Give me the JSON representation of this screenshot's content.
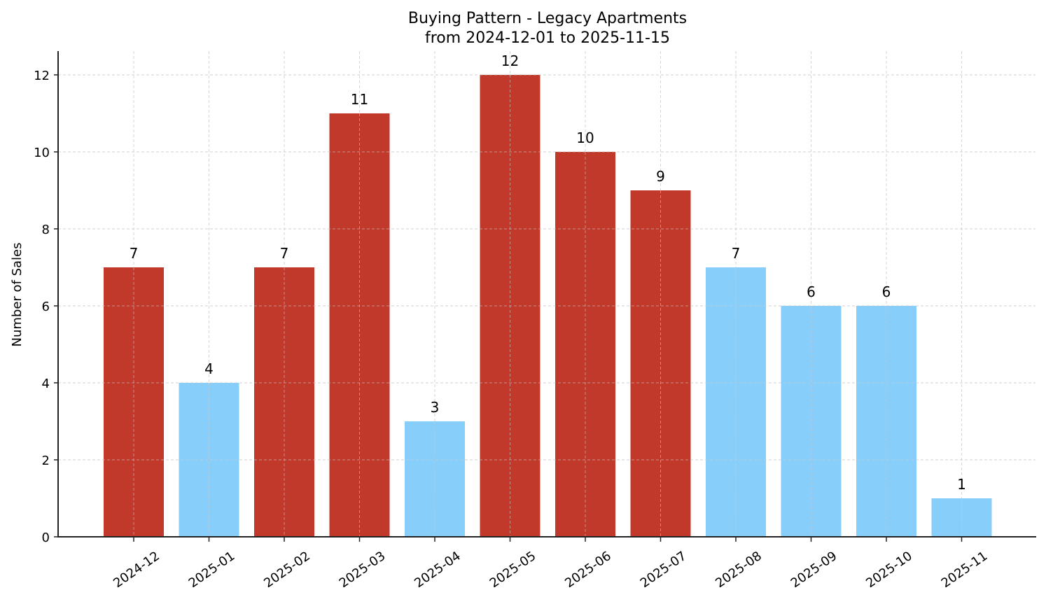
{
  "chart_data": {
    "type": "bar",
    "title": "Buying Pattern - Legacy Apartments",
    "subtitle": "from 2024-12-01 to 2025-11-15",
    "xlabel": "",
    "ylabel": "Number of Sales",
    "categories": [
      "2024-12",
      "2025-01",
      "2025-02",
      "2025-03",
      "2025-04",
      "2025-05",
      "2025-06",
      "2025-07",
      "2025-08",
      "2025-09",
      "2025-10",
      "2025-11"
    ],
    "values": [
      7,
      4,
      7,
      11,
      3,
      12,
      10,
      9,
      7,
      6,
      6,
      1
    ],
    "bar_colors": [
      "#c0392b",
      "#87cefa",
      "#c0392b",
      "#c0392b",
      "#87cefa",
      "#c0392b",
      "#c0392b",
      "#c0392b",
      "#87cefa",
      "#87cefa",
      "#87cefa",
      "#87cefa"
    ],
    "data_labels": [
      "7",
      "4",
      "7",
      "11",
      "3",
      "12",
      "10",
      "9",
      "7",
      "6",
      "6",
      "1"
    ],
    "yticks": [
      0,
      2,
      4,
      6,
      8,
      10,
      12
    ],
    "ylim": [
      0,
      12.6
    ],
    "grid": true,
    "grid_style": "dashed",
    "legend": null,
    "xtick_rotation": 35
  },
  "colors": {
    "high": "#c0392b",
    "low": "#87cefa",
    "grid": "#cccccc",
    "axis": "#222222"
  }
}
